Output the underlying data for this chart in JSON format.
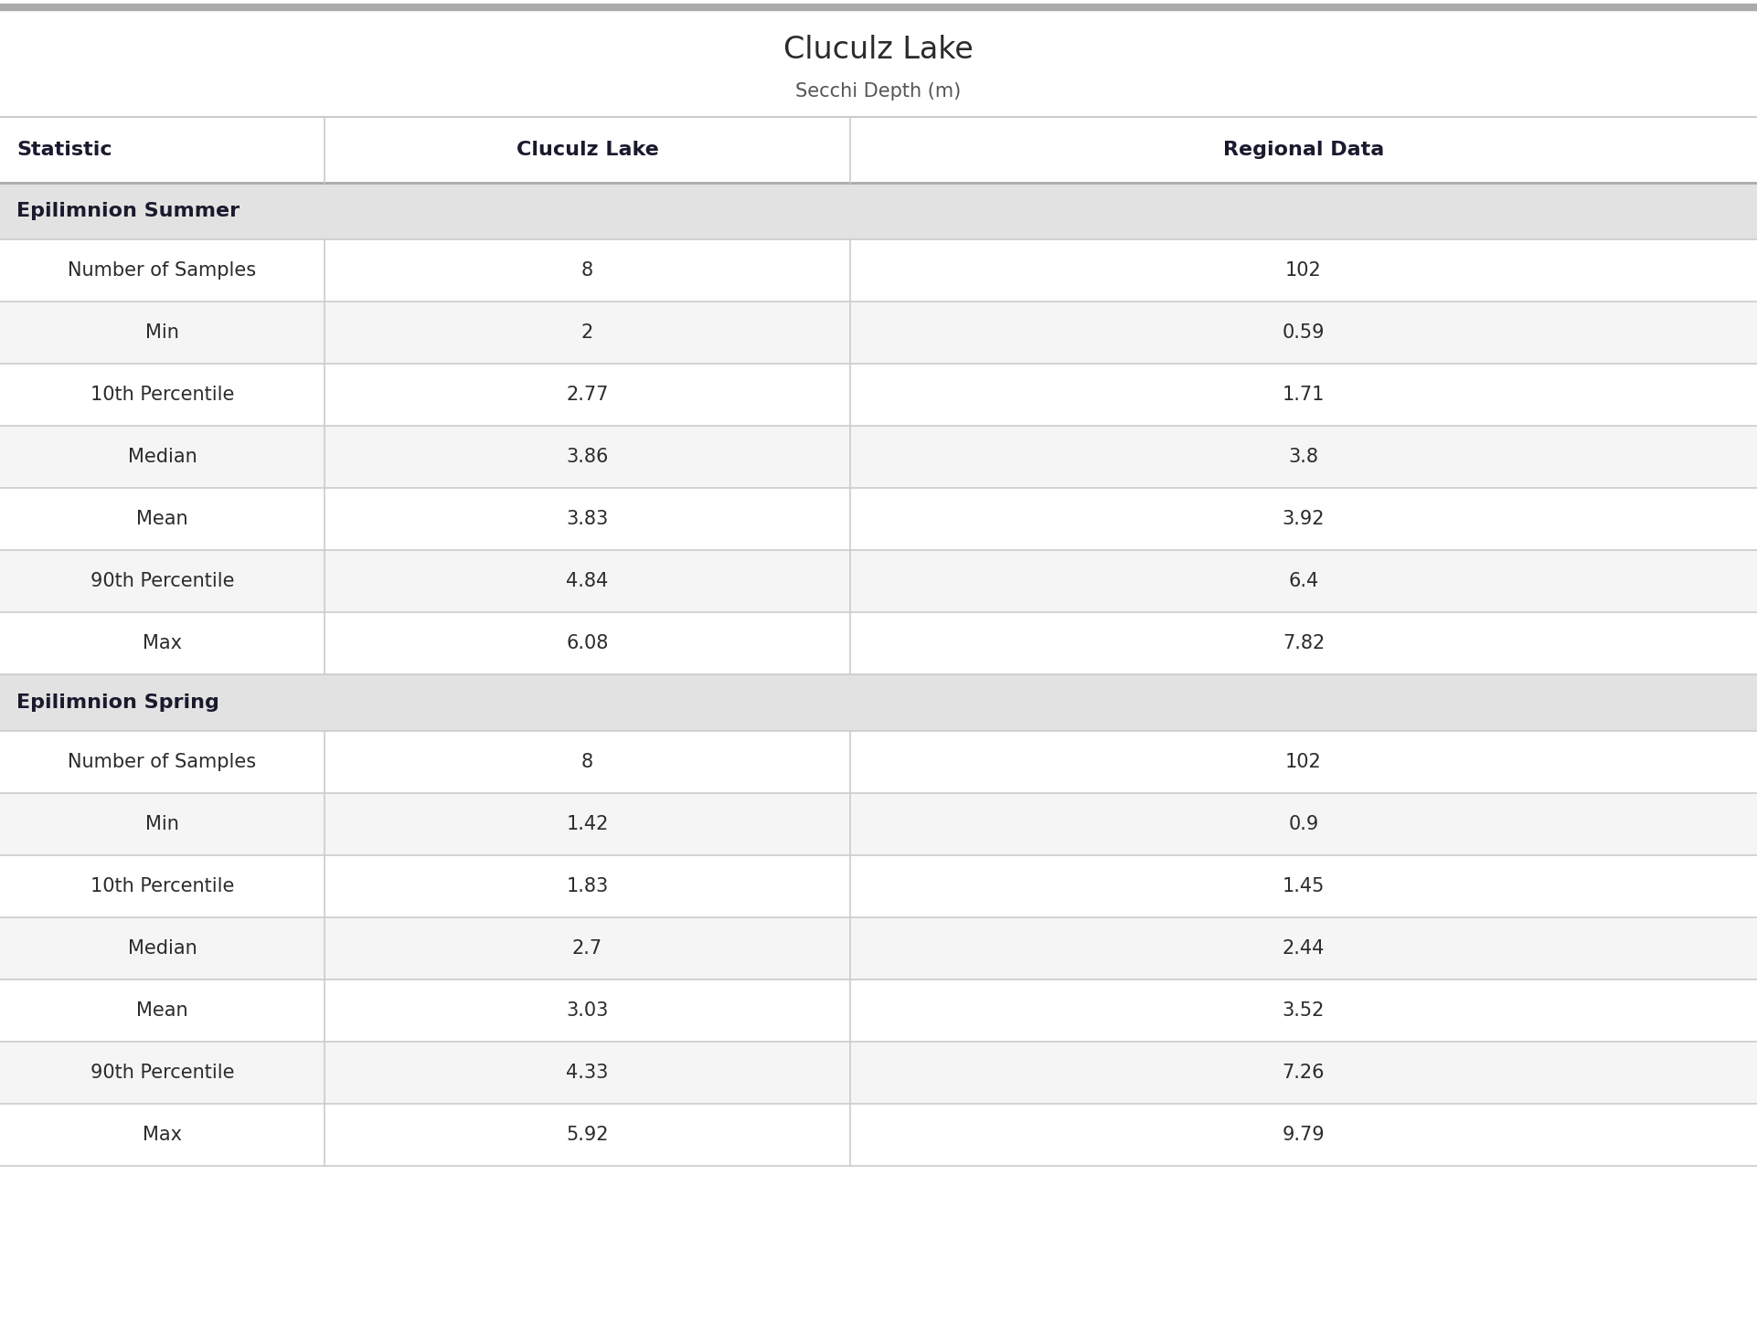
{
  "title": "Cluculz Lake",
  "subtitle": "Secchi Depth (m)",
  "col_headers": [
    "Statistic",
    "Cluculz Lake",
    "Regional Data"
  ],
  "sections": [
    {
      "section_label": "Epilimnion Summer",
      "rows": [
        [
          "Number of Samples",
          "8",
          "102"
        ],
        [
          "Min",
          "2",
          "0.59"
        ],
        [
          "10th Percentile",
          "2.77",
          "1.71"
        ],
        [
          "Median",
          "3.86",
          "3.8"
        ],
        [
          "Mean",
          "3.83",
          "3.92"
        ],
        [
          "90th Percentile",
          "4.84",
          "6.4"
        ],
        [
          "Max",
          "6.08",
          "7.82"
        ]
      ]
    },
    {
      "section_label": "Epilimnion Spring",
      "rows": [
        [
          "Number of Samples",
          "8",
          "102"
        ],
        [
          "Min",
          "1.42",
          "0.9"
        ],
        [
          "10th Percentile",
          "1.83",
          "1.45"
        ],
        [
          "Median",
          "2.7",
          "2.44"
        ],
        [
          "Mean",
          "3.03",
          "3.52"
        ],
        [
          "90th Percentile",
          "4.33",
          "7.26"
        ],
        [
          "Max",
          "5.92",
          "9.79"
        ]
      ]
    }
  ],
  "title_color": "#2b2b2b",
  "subtitle_color": "#555555",
  "header_text_color": "#1a1a2e",
  "section_bg_color": "#e2e2e2",
  "section_text_color": "#1a1a2e",
  "row_bg_even": "#ffffff",
  "row_bg_odd": "#f5f5f5",
  "data_text_color": "#2b2b2b",
  "grid_line_color": "#cccccc",
  "top_bar_color": "#aaaaaa",
  "title_fontsize": 24,
  "subtitle_fontsize": 15,
  "header_fontsize": 16,
  "section_fontsize": 16,
  "data_fontsize": 15
}
